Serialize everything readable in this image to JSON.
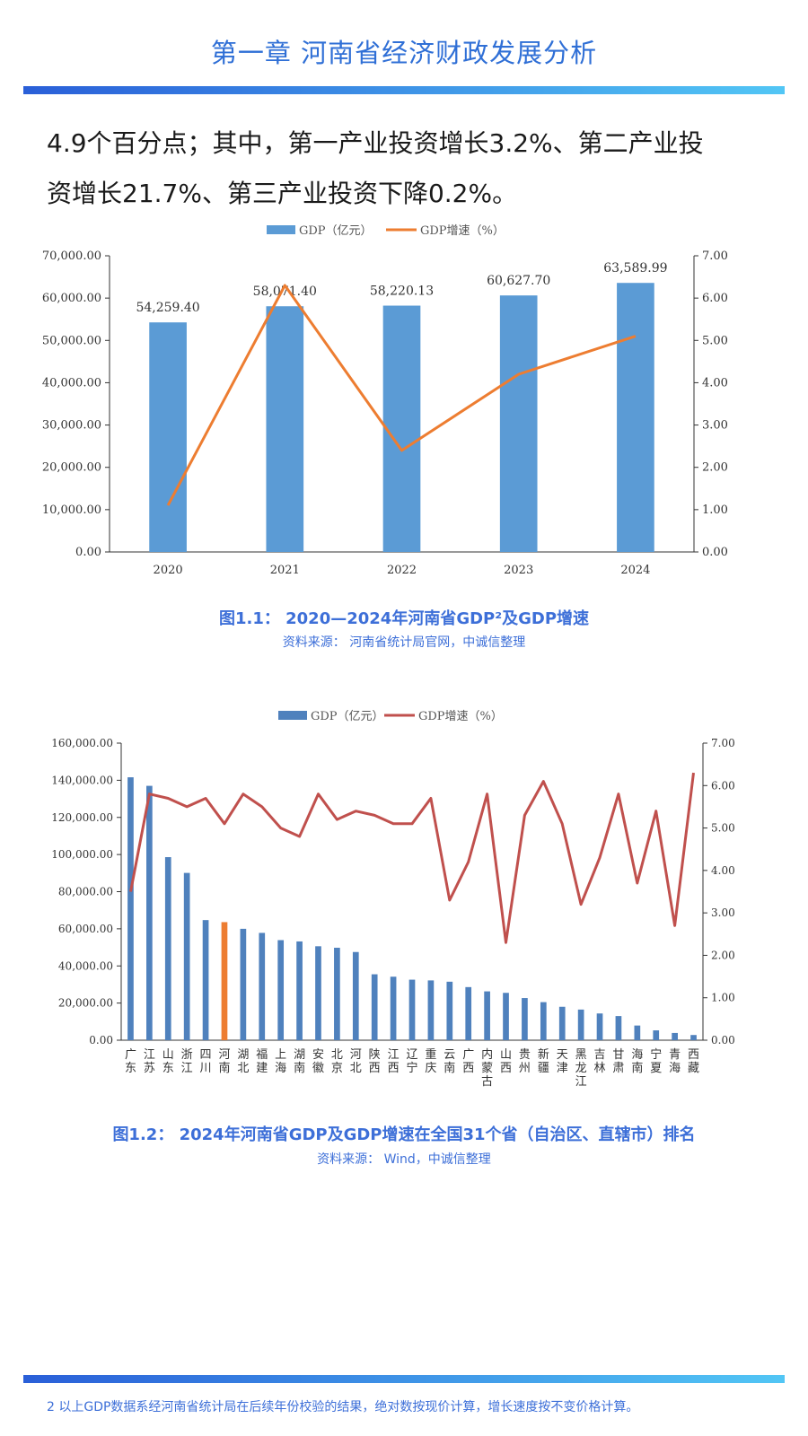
{
  "header": {
    "chapter_title": "第一章  河南省经济财政发展分析"
  },
  "body": {
    "line1": "4.9个百分点；其中，第一产业投资增长3.2%、第二产业投",
    "line2": "资增长21.7%、第三产业投资下降0.2%。"
  },
  "colors": {
    "accent": "#3d6fd8",
    "bar1": "#5b9bd5",
    "line1": "#ed7d31",
    "bar2": "#4f81bd",
    "bar2_highlight": "#ed7d31",
    "line2": "#c0504d"
  },
  "chart_data": [
    {
      "type": "bar",
      "legend": {
        "placement": "top-center",
        "bar_label": "GDP（亿元）",
        "line_label": "GDP增速（%）"
      },
      "categories": [
        "2020",
        "2021",
        "2022",
        "2023",
        "2024"
      ],
      "series": [
        {
          "name": "GDP（亿元）",
          "type": "bar",
          "axis": "left",
          "values": [
            54259.4,
            58071.4,
            58220.13,
            60627.7,
            63589.99
          ]
        },
        {
          "name": "GDP增速（%）",
          "type": "line",
          "axis": "right",
          "values": [
            1.1,
            6.3,
            2.4,
            4.2,
            5.1
          ]
        }
      ],
      "data_labels": [
        "54,259.40",
        "58,071.40",
        "58,220.13",
        "60,627.70",
        "63,589.99"
      ],
      "ylim_left": [
        0,
        70000
      ],
      "ylim_right": [
        0,
        7
      ],
      "yticks_left": [
        "0.00",
        "10,000.00",
        "20,000.00",
        "30,000.00",
        "40,000.00",
        "50,000.00",
        "60,000.00",
        "70,000.00"
      ],
      "yticks_right": [
        "0.00",
        "1.00",
        "2.00",
        "3.00",
        "4.00",
        "5.00",
        "6.00",
        "7.00"
      ],
      "grid": false,
      "caption": "图1.1： 2020—2024年河南省GDP²及GDP增速",
      "source": "资料来源： 河南省统计局官网，中诚信整理"
    },
    {
      "type": "bar",
      "legend": {
        "placement": "top-center",
        "bar_label": "GDP（亿元）",
        "line_label": "GDP增速（%）"
      },
      "categories": [
        "广东",
        "江苏",
        "山东",
        "浙江",
        "四川",
        "河南",
        "湖北",
        "福建",
        "上海",
        "湖南",
        "安徽",
        "北京",
        "河北",
        "陕西",
        "江西",
        "辽宁",
        "重庆",
        "云南",
        "广西",
        "内蒙古",
        "山西",
        "贵州",
        "新疆",
        "天津",
        "黑龙江",
        "吉林",
        "甘肃",
        "海南",
        "宁夏",
        "青海",
        "西藏"
      ],
      "highlight_category": "河南",
      "series": [
        {
          "name": "GDP（亿元）",
          "type": "bar",
          "axis": "left",
          "values": [
            141600,
            137000,
            98600,
            90100,
            64700,
            63590,
            60000,
            57800,
            53900,
            53200,
            50600,
            49800,
            47500,
            35500,
            34200,
            32600,
            32200,
            31500,
            28600,
            26300,
            25500,
            22700,
            20500,
            18000,
            16500,
            14400,
            13000,
            7900,
            5300,
            3900,
            2800
          ]
        },
        {
          "name": "GDP增速（%）",
          "type": "line",
          "axis": "right",
          "values": [
            3.5,
            5.8,
            5.7,
            5.5,
            5.7,
            5.1,
            5.8,
            5.5,
            5.0,
            4.8,
            5.8,
            5.2,
            5.4,
            5.3,
            5.1,
            5.1,
            5.7,
            3.3,
            4.2,
            5.8,
            2.3,
            5.3,
            6.1,
            5.1,
            3.2,
            4.3,
            5.8,
            3.7,
            5.4,
            2.7,
            6.3
          ]
        }
      ],
      "ylim_left": [
        0,
        160000
      ],
      "ylim_right": [
        0,
        7
      ],
      "yticks_left": [
        "0.00",
        "20,000.00",
        "40,000.00",
        "60,000.00",
        "80,000.00",
        "100,000.00",
        "120,000.00",
        "140,000.00",
        "160,000.00"
      ],
      "yticks_right": [
        "0.00",
        "1.00",
        "2.00",
        "3.00",
        "4.00",
        "5.00",
        "6.00",
        "7.00"
      ],
      "grid": false,
      "caption": "图1.2： 2024年河南省GDP及GDP增速在全国31个省（自治区、直辖市）排名",
      "source": "资料来源： Wind，中诚信整理"
    }
  ],
  "footer": {
    "footnote": "2 以上GDP数据系经河南省统计局在后续年份校验的结果，绝对数按现价计算，增长速度按不变价格计算。"
  }
}
